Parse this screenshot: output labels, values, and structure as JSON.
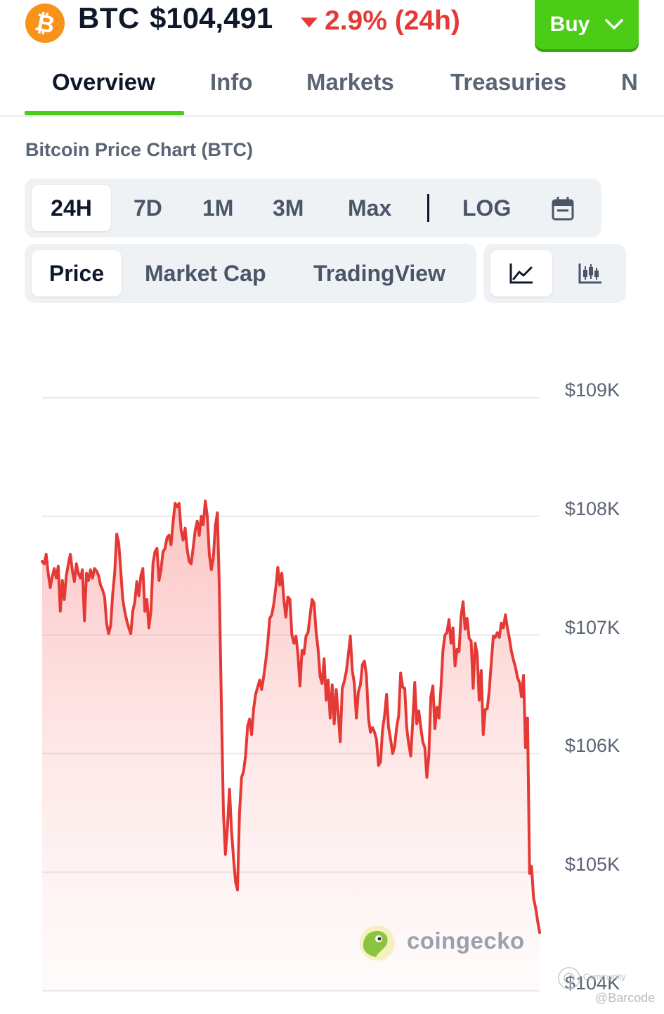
{
  "header": {
    "ticker": "BTC",
    "price": "$104,491",
    "change": "2.9% (24h)",
    "buy_label": "Buy"
  },
  "tabs": [
    {
      "label": "Overview",
      "active": true
    },
    {
      "label": "Info",
      "active": false
    },
    {
      "label": "Markets",
      "active": false
    },
    {
      "label": "Treasuries",
      "active": false
    },
    {
      "label": "N",
      "active": false
    }
  ],
  "chart_title": "Bitcoin Price Chart (BTC)",
  "time_ranges": [
    {
      "label": "24H",
      "active": true
    },
    {
      "label": "7D",
      "active": false
    },
    {
      "label": "1M",
      "active": false
    },
    {
      "label": "3M",
      "active": false
    },
    {
      "label": "Max",
      "active": false
    }
  ],
  "scale_toggle": "LOG",
  "chart_types": [
    {
      "label": "Price",
      "active": true
    },
    {
      "label": "Market Cap",
      "active": false
    },
    {
      "label": "TradingView",
      "active": false
    }
  ],
  "view_modes": {
    "line_icon": "line-chart-icon",
    "candle_icon": "candlestick-icon",
    "active": "line"
  },
  "watermark": {
    "brand": "coingecko",
    "community": "Community",
    "handle": "@Barcode"
  },
  "colors": {
    "accent": "#4bcc16",
    "down": "#e53935",
    "bitcoin": "#f7931a"
  },
  "chart_data": {
    "type": "area",
    "title": "",
    "xlabel": "",
    "ylabel": "",
    "ylim": [
      103950,
      109050
    ],
    "y_ticks": [
      {
        "value": 109000,
        "label": "$109K"
      },
      {
        "value": 108000,
        "label": "$108K"
      },
      {
        "value": 107000,
        "label": "$107K"
      },
      {
        "value": 106000,
        "label": "$106K"
      },
      {
        "value": 105000,
        "label": "$105K"
      },
      {
        "value": 104000,
        "label": "$104K"
      }
    ],
    "grid": true,
    "series": [
      {
        "values": [
          107620,
          107600,
          107680,
          107520,
          107400,
          107490,
          107560,
          107480,
          107580,
          107200,
          107460,
          107300,
          107500,
          107600,
          107680,
          107540,
          107450,
          107600,
          107520,
          107480,
          107550,
          107120,
          107520,
          107460,
          107550,
          107480,
          107560,
          107540,
          107500,
          107420,
          107380,
          107320,
          107100,
          107010,
          107080,
          107340,
          107520,
          107850,
          107780,
          107550,
          107300,
          107200,
          107120,
          107060,
          107010,
          107200,
          107280,
          107450,
          107330,
          107500,
          107560,
          107200,
          107300,
          107060,
          107200,
          107600,
          107700,
          107730,
          107460,
          107550,
          107700,
          107730,
          107820,
          107840,
          107760,
          107950,
          108110,
          108080,
          108110,
          107880,
          107800,
          107900,
          107720,
          107620,
          107600,
          107740,
          107880,
          107960,
          107840,
          108000,
          107930,
          108130,
          108000,
          107680,
          107550,
          107650,
          107920,
          108030,
          107380,
          106400,
          105500,
          105150,
          105380,
          105700,
          105360,
          105120,
          104920,
          104850,
          105500,
          105800,
          105850,
          105980,
          106230,
          106290,
          106160,
          106380,
          106500,
          106560,
          106620,
          106540,
          106650,
          106780,
          106930,
          107140,
          107170,
          107260,
          107400,
          107570,
          107420,
          107520,
          107300,
          107150,
          107320,
          107300,
          107000,
          106930,
          106990,
          106840,
          106570,
          106870,
          106840,
          106990,
          107020,
          107160,
          107300,
          107270,
          107030,
          106880,
          106650,
          106590,
          106800,
          106450,
          106620,
          106300,
          106580,
          106250,
          106540,
          106330,
          106100,
          106550,
          106610,
          106690,
          106830,
          106990,
          106700,
          106590,
          106300,
          106520,
          106580,
          106750,
          106780,
          106660,
          106300,
          106180,
          106220,
          106180,
          106120,
          105900,
          105930,
          106200,
          106320,
          106500,
          106220,
          106120,
          106000,
          106060,
          106220,
          106320,
          106680,
          106560,
          106550,
          106220,
          106080,
          105980,
          106270,
          106600,
          106250,
          106360,
          106220,
          106100,
          106050,
          105800,
          105980,
          106480,
          106570,
          106210,
          106390,
          106300,
          106550,
          106870,
          107000,
          107020,
          107130,
          106930,
          107060,
          106740,
          106880,
          106860,
          107160,
          107280,
          107050,
          107140,
          106970,
          106950,
          106550,
          106930,
          106840,
          106450,
          106700,
          106160,
          106370,
          106380,
          106530,
          106770,
          106990,
          106980,
          107020,
          106980,
          107100,
          107060,
          107170,
          107060,
          106970,
          106860,
          106790,
          106730,
          106640,
          106600,
          106480,
          106660,
          106050,
          106300,
          104990,
          105050,
          104780,
          104700,
          104590,
          104491
        ]
      }
    ]
  }
}
